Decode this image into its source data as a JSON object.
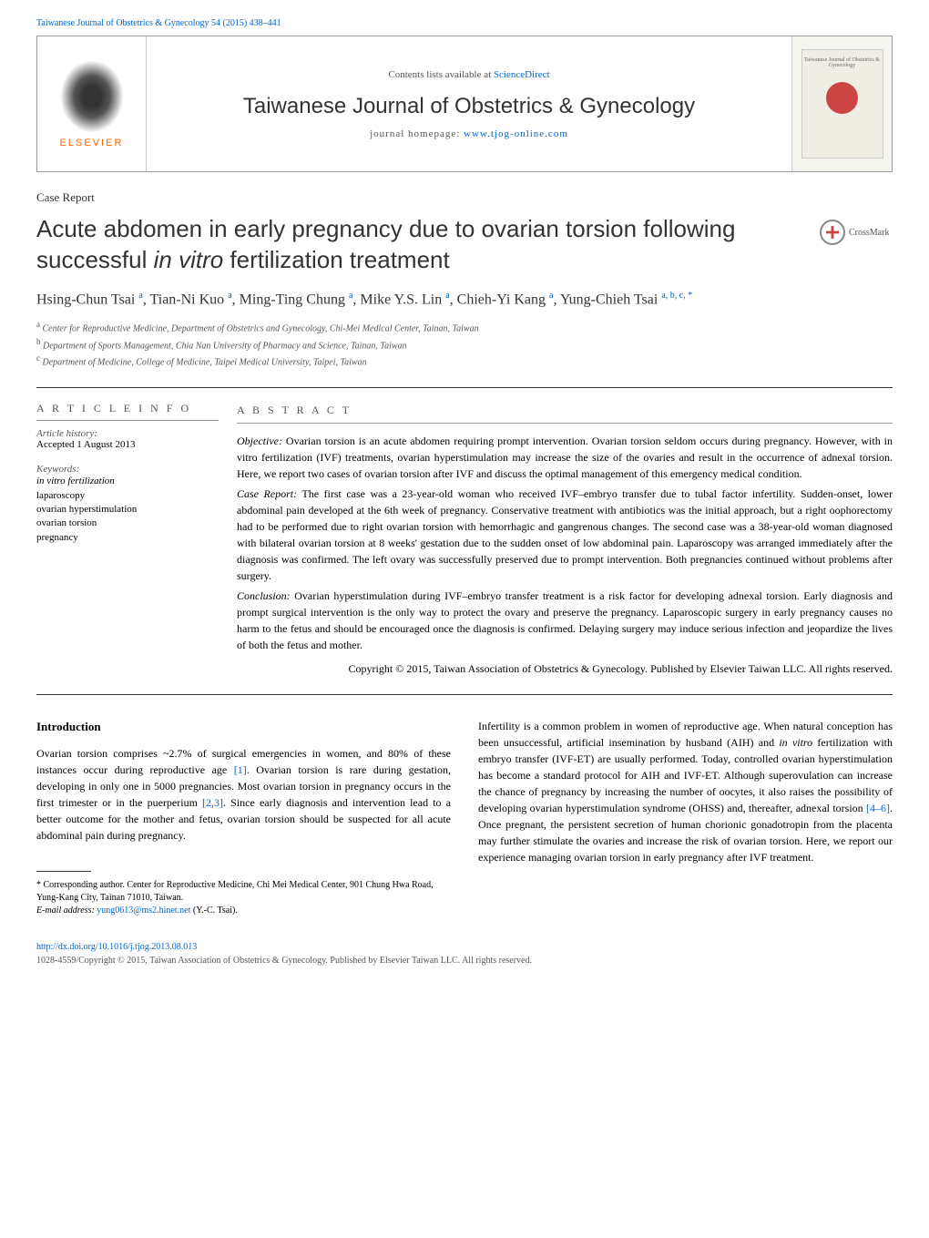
{
  "journal_link": {
    "text": "Taiwanese Journal of Obstetrics & Gynecology 54 (2015) 438–441"
  },
  "header": {
    "publisher": "ELSEVIER",
    "contents_prefix": "Contents lists available at ",
    "contents_link": "ScienceDirect",
    "journal_name": "Taiwanese Journal of Obstetrics & Gynecology",
    "homepage_prefix": "journal homepage: ",
    "homepage_url": "www.tjog-online.com",
    "cover_text": "Taiwanese Journal of\nObstetrics & Gynecology"
  },
  "article_type": "Case Report",
  "title_line1": "Acute abdomen in early pregnancy due to ovarian torsion following",
  "title_line2_prefix": "successful ",
  "title_line2_italic": "in vitro",
  "title_line2_suffix": " fertilization treatment",
  "crossmark": "CrossMark",
  "authors_html": "Hsing-Chun Tsai <sup>a</sup>, Tian-Ni Kuo <sup>a</sup>, Ming-Ting Chung <sup>a</sup>, Mike Y.S. Lin <sup>a</sup>, Chieh-Yi Kang <sup>a</sup>, Yung-Chieh Tsai <sup>a, b, c, *</sup>",
  "affiliations": {
    "a": "Center for Reproductive Medicine, Department of Obstetrics and Gynecology, Chi-Mei Medical Center, Tainan, Taiwan",
    "b": "Department of Sports Management, Chia Nan University of Pharmacy and Science, Tainan, Taiwan",
    "c": "Department of Medicine, College of Medicine, Taipei Medical University, Taipei, Taiwan"
  },
  "info": {
    "heading": "A R T I C L E   I N F O",
    "history_label": "Article history:",
    "history_value": "Accepted 1 August 2013",
    "keywords_label": "Keywords:",
    "keywords": [
      "in vitro fertilization",
      "laparoscopy",
      "ovarian hyperstimulation",
      "ovarian torsion",
      "pregnancy"
    ]
  },
  "abstract": {
    "heading": "A B S T R A C T",
    "objective_lead": "Objective:",
    "objective": " Ovarian torsion is an acute abdomen requiring prompt intervention. Ovarian torsion seldom occurs during pregnancy. However, with in vitro fertilization (IVF) treatments, ovarian hyperstimulation may increase the size of the ovaries and result in the occurrence of adnexal torsion. Here, we report two cases of ovarian torsion after IVF and discuss the optimal management of this emergency medical condition.",
    "case_lead": "Case Report:",
    "case": " The first case was a 23-year-old woman who received IVF–embryo transfer due to tubal factor infertility. Sudden-onset, lower abdominal pain developed at the 6th week of pregnancy. Conservative treatment with antibiotics was the initial approach, but a right oophorectomy had to be performed due to right ovarian torsion with hemorrhagic and gangrenous changes. The second case was a 38-year-old woman diagnosed with bilateral ovarian torsion at 8 weeks' gestation due to the sudden onset of low abdominal pain. Laparoscopy was arranged immediately after the diagnosis was confirmed. The left ovary was successfully preserved due to prompt intervention. Both pregnancies continued without problems after surgery.",
    "conclusion_lead": "Conclusion:",
    "conclusion": " Ovarian hyperstimulation during IVF–embryo transfer treatment is a risk factor for developing adnexal torsion. Early diagnosis and prompt surgical intervention is the only way to protect the ovary and preserve the pregnancy. Laparoscopic surgery in early pregnancy causes no harm to the fetus and should be encouraged once the diagnosis is confirmed. Delaying surgery may induce serious infection and jeopardize the lives of both the fetus and mother.",
    "copyright": "Copyright © 2015, Taiwan Association of Obstetrics & Gynecology. Published by Elsevier Taiwan LLC. All rights reserved."
  },
  "body": {
    "intro_heading": "Introduction",
    "intro_p1_a": "Ovarian torsion comprises ~2.7% of surgical emergencies in women, and 80% of these instances occur during reproductive age ",
    "intro_cite1": "[1]",
    "intro_p1_b": ". Ovarian torsion is rare during gestation, developing in only one in 5000 pregnancies. Most ovarian torsion in pregnancy occurs in the first trimester or in the puerperium ",
    "intro_cite2": "[2,3]",
    "intro_p1_c": ". Since early diagnosis and intervention lead to a better outcome for the mother and fetus, ovarian torsion should be suspected for all acute abdominal pain during pregnancy.",
    "col2_p1_a": "Infertility is a common problem in women of reproductive age. When natural conception has been unsuccessful, artificial insemination by husband (AIH) and ",
    "col2_p1_italic": "in vitro",
    "col2_p1_b": " fertilization with embryo transfer (IVF-ET) are usually performed. Today, controlled ovarian hyperstimulation has become a standard protocol for AIH and IVF-ET. Although superovulation can increase the chance of pregnancy by increasing the number of oocytes, it also raises the possibility of developing ovarian hyperstimulation syndrome (OHSS) and, thereafter, adnexal torsion ",
    "col2_cite1": "[4–6]",
    "col2_p1_c": ". Once pregnant, the persistent secretion of human chorionic gonadotropin from the placenta may further stimulate the ovaries and increase the risk of ovarian torsion. Here, we report our experience managing ovarian torsion in early pregnancy after IVF treatment."
  },
  "footnote": {
    "corr": "* Corresponding author. Center for Reproductive Medicine, Chi Mei Medical Center, 901 Chung Hwa Road, Yung-Kang City, Tainan 71010, Taiwan.",
    "email_label": "E-mail address: ",
    "email": "yung0613@ms2.hinet.net",
    "email_suffix": " (Y.-C. Tsai)."
  },
  "footer": {
    "doi": "http://dx.doi.org/10.1016/j.tjog.2013.08.013",
    "copyright": "1028-4559/Copyright © 2015, Taiwan Association of Obstetrics & Gynecology. Published by Elsevier Taiwan LLC. All rights reserved."
  },
  "colors": {
    "link": "#0066cc",
    "accent": "#ff6600",
    "text": "#000000",
    "muted": "#555555",
    "border": "#333333"
  }
}
